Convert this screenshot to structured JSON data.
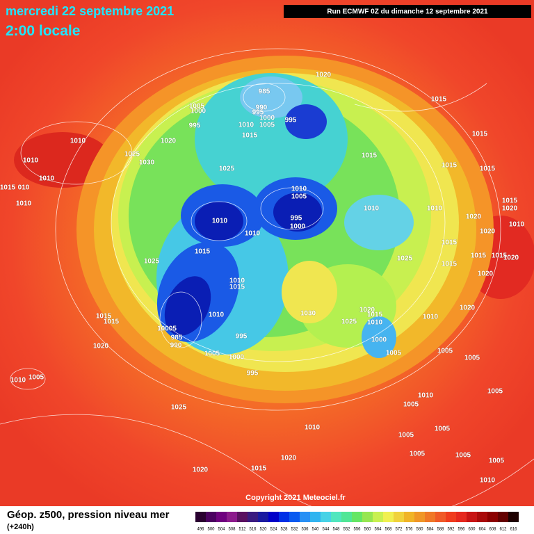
{
  "header": {
    "date": "mercredi 22 septembre 2021",
    "time": "2:00 locale",
    "run": "Run ECMWF 0Z du dimanche 12 septembre 2021"
  },
  "copyright": "Copyright 2021 Meteociel.fr",
  "footer": {
    "title": "Géop. z500, pression niveau mer",
    "lead": "(+240h)"
  },
  "legend": {
    "values": [
      496,
      500,
      504,
      508,
      512,
      516,
      520,
      524,
      528,
      532,
      536,
      540,
      544,
      548,
      552,
      556,
      560,
      564,
      568,
      572,
      576,
      580,
      584,
      588,
      592,
      596,
      600,
      604,
      608,
      612,
      616
    ],
    "colors": [
      "#2a0030",
      "#4b0060",
      "#6f007f",
      "#8c1a8c",
      "#5a1060",
      "#3a1a80",
      "#1a1aa0",
      "#0000c8",
      "#0030e6",
      "#0a5af0",
      "#2890f5",
      "#30b4f0",
      "#46d2e6",
      "#50e6be",
      "#50e696",
      "#64e664",
      "#96e650",
      "#c8f050",
      "#f0f050",
      "#f0d23c",
      "#f0b428",
      "#f09628",
      "#f07828",
      "#f05a28",
      "#f03c1e",
      "#e6281e",
      "#c81414",
      "#aa0a0a",
      "#8c0000",
      "#640000",
      "#1e0000"
    ]
  },
  "isobar_labels": [
    "1020",
    "985",
    "1005",
    "1000",
    "990",
    "995",
    "1000",
    "1005",
    "995",
    "995",
    "1010",
    "1015",
    "1015",
    "1015",
    "1020",
    "1010",
    "1010",
    "1025",
    "1030",
    "1015",
    "1015",
    "1015",
    "1025",
    "1010",
    "1015",
    "010",
    "1010",
    "1010",
    "1005",
    "1010",
    "1010",
    "1015",
    "1020",
    "1010",
    "995",
    "1000",
    "1010",
    "1020",
    "1020",
    "1010",
    "1015",
    "1015",
    "1025",
    "1025",
    "1015",
    "1015",
    "1015",
    "1020",
    "1010",
    "1015",
    "1020",
    "1030",
    "1020",
    "1015",
    "1010",
    "1025",
    "1010",
    "1020",
    "1015",
    "1015",
    "1010",
    "10005",
    "985",
    "990",
    "995",
    "1000",
    "1005",
    "1005",
    "1005",
    "1000",
    "1020",
    "1005",
    "995",
    "1010",
    "1005",
    "1010",
    "1005",
    "1005",
    "1025",
    "1010",
    "1005",
    "1020",
    "1005",
    "1015",
    "1005",
    "1005",
    "1020",
    "1010",
    "1005"
  ]
}
